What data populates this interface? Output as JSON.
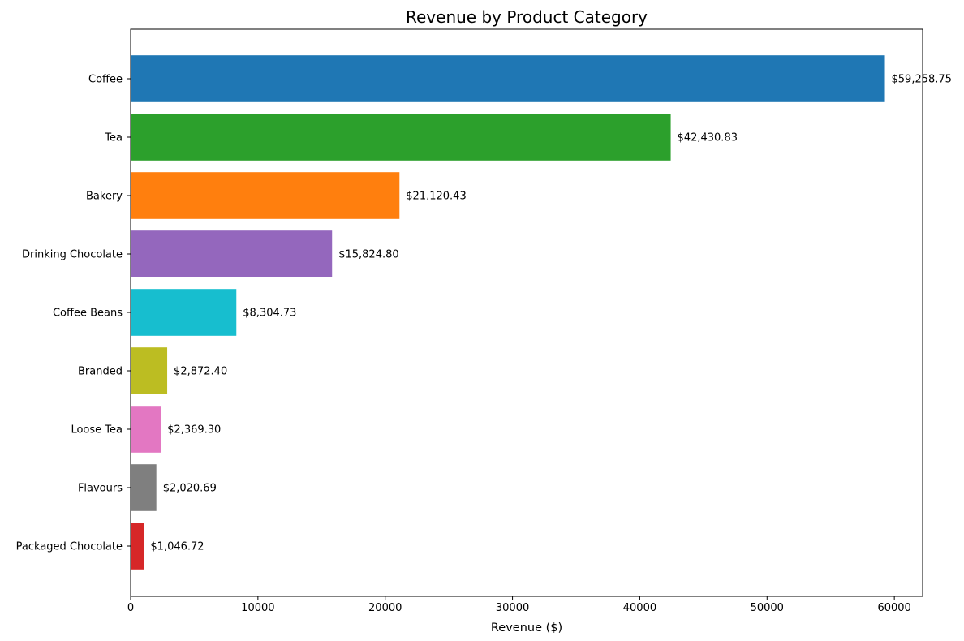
{
  "chart_data": {
    "type": "bar",
    "orientation": "horizontal",
    "title": "Revenue by Product Category",
    "xlabel": "Revenue ($)",
    "ylabel": "",
    "xlim": [
      0,
      62222
    ],
    "xticks": [
      0,
      10000,
      20000,
      30000,
      40000,
      50000,
      60000
    ],
    "grid": false,
    "categories": [
      "Coffee",
      "Tea",
      "Bakery",
      "Drinking Chocolate",
      "Coffee Beans",
      "Branded",
      "Loose Tea",
      "Flavours",
      "Packaged Chocolate"
    ],
    "values": [
      59258.75,
      42430.83,
      21120.43,
      15824.8,
      8304.73,
      2872.4,
      2369.3,
      2020.69,
      1046.72
    ],
    "value_labels": [
      "$59,258.75",
      "$42,430.83",
      "$21,120.43",
      "$15,824.80",
      "$8,304.73",
      "$2,872.40",
      "$2,369.30",
      "$2,020.69",
      "$1,046.72"
    ],
    "colors": [
      "#1f77b4",
      "#2ca02c",
      "#ff7f0e",
      "#9467bd",
      "#17becf",
      "#bcbd22",
      "#e377c2",
      "#7f7f7f",
      "#d62728"
    ]
  }
}
